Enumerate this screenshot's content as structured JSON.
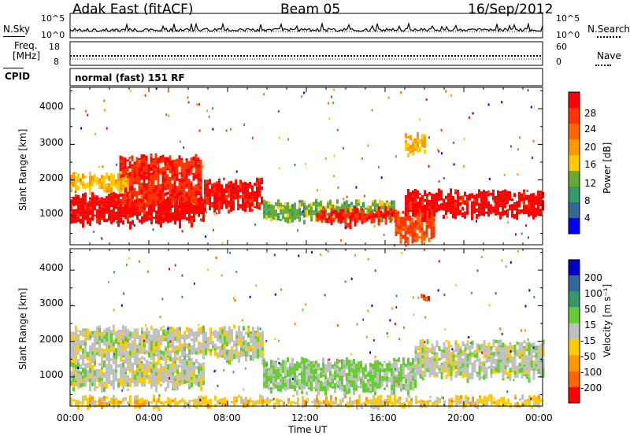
{
  "header": {
    "station": "Adak East (fitACF)",
    "beam": "Beam 05",
    "date": "16/Sep/2012"
  },
  "top_panels": {
    "nsky_label": "N.Sky",
    "nsky_ticks": [
      "10^5",
      "10^0"
    ],
    "nsearch_label": "N.Search",
    "nsearch_ticks": [
      "10^5",
      "10^0"
    ],
    "freq_label": "Freq.",
    "freq_unit": "[MHz]",
    "freq_ticks": [
      "18",
      "8"
    ],
    "nave_label": "Nave",
    "nave_ticks": [
      "60",
      "0"
    ],
    "cpid_label": "CPID",
    "cpid_text": "normal (fast) 151 RF"
  },
  "axes": {
    "ylabel": "Slant Range [km]",
    "xlabel": "Time UT",
    "y_ticks": [
      "4000",
      "3000",
      "2000",
      "1000"
    ],
    "x_ticks": [
      "00:00",
      "04:00",
      "08:00",
      "12:00",
      "16:00",
      "20:00",
      "00:00"
    ]
  },
  "power_scale": {
    "label": "Power [dB]",
    "ticks": [
      "28",
      "24",
      "20",
      "16",
      "12",
      "8",
      "4"
    ],
    "colors": [
      "#ff0000",
      "#ff3300",
      "#ff6600",
      "#ff9900",
      "#ffcc00",
      "#66aa33",
      "#339966",
      "#336699",
      "#0000ff"
    ]
  },
  "velocity_scale": {
    "label": "Velocity [m s⁻¹]",
    "ticks": [
      "200",
      "100",
      "50",
      "15",
      "-15",
      "-50",
      "-100",
      "-200"
    ],
    "colors": [
      "#0000cc",
      "#336699",
      "#339966",
      "#66cc33",
      "#c0c0c0",
      "#ffcc00",
      "#ff9900",
      "#ff6600",
      "#ff0000"
    ]
  },
  "chart_data": {
    "type": "heatmap",
    "x_range_hours": [
      0,
      24
    ],
    "y_range_km": [
      180,
      4600
    ],
    "panels": [
      {
        "quantity": "Power",
        "unit": "dB",
        "scale": [
          0,
          30
        ],
        "echo_bands": [
          {
            "t0": 0,
            "t1": 6.8,
            "r0": 800,
            "r1": 1600,
            "value": 29
          },
          {
            "t0": 2.5,
            "t1": 6.6,
            "r0": 1300,
            "r1": 2700,
            "value": 26
          },
          {
            "t0": 0,
            "t1": 3.0,
            "r0": 1700,
            "r1": 2200,
            "value": 16
          },
          {
            "t0": 6.8,
            "t1": 9.8,
            "r0": 1200,
            "r1": 2000,
            "value": 28
          },
          {
            "t0": 9.8,
            "t1": 16.5,
            "r0": 900,
            "r1": 1400,
            "value": 12
          },
          {
            "t0": 12.5,
            "t1": 16.5,
            "r0": 800,
            "r1": 1200,
            "value": 27
          },
          {
            "t0": 16.5,
            "t1": 18.5,
            "r0": 300,
            "r1": 1100,
            "value": 24
          },
          {
            "t0": 17.0,
            "t1": 24,
            "r0": 1000,
            "r1": 1700,
            "value": 29
          },
          {
            "t0": 17.0,
            "t1": 18.0,
            "r0": 2700,
            "r1": 3300,
            "value": 16
          }
        ]
      },
      {
        "quantity": "Velocity",
        "unit": "m s-1",
        "scale": [
          -250,
          250
        ],
        "echo_bands": [
          {
            "t0": 0,
            "t1": 6.8,
            "r0": 700,
            "r1": 1500,
            "value": 0
          },
          {
            "t0": 0,
            "t1": 9.8,
            "r0": 1500,
            "r1": 2400,
            "value": 0
          },
          {
            "t0": 9.8,
            "t1": 17.5,
            "r0": 600,
            "r1": 1500,
            "value": 35
          },
          {
            "t0": 17.5,
            "t1": 24,
            "r0": 1000,
            "r1": 2000,
            "value": 0
          },
          {
            "t0": 17.8,
            "t1": 18.3,
            "r0": 3150,
            "r1": 3350,
            "value": -200
          },
          {
            "t0": 0,
            "t1": 24,
            "r0": 180,
            "r1": 450,
            "value": -50
          }
        ]
      }
    ]
  }
}
